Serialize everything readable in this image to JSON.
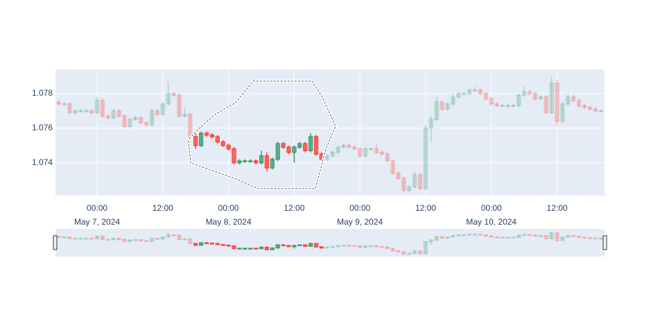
{
  "chart_data": {
    "type": "candlestick",
    "x": [
      "2024-05-06 17:00",
      "2024-05-06 18:00",
      "2024-05-06 19:00",
      "2024-05-06 20:00",
      "2024-05-06 21:00",
      "2024-05-06 22:00",
      "2024-05-06 23:00",
      "2024-05-07 00:00",
      "2024-05-07 01:00",
      "2024-05-07 02:00",
      "2024-05-07 03:00",
      "2024-05-07 04:00",
      "2024-05-07 05:00",
      "2024-05-07 06:00",
      "2024-05-07 07:00",
      "2024-05-07 08:00",
      "2024-05-07 09:00",
      "2024-05-07 10:00",
      "2024-05-07 11:00",
      "2024-05-07 12:00",
      "2024-05-07 13:00",
      "2024-05-07 14:00",
      "2024-05-07 15:00",
      "2024-05-07 16:00",
      "2024-05-07 17:00",
      "2024-05-07 18:00",
      "2024-05-07 19:00",
      "2024-05-07 20:00",
      "2024-05-07 21:00",
      "2024-05-07 22:00",
      "2024-05-07 23:00",
      "2024-05-08 00:00",
      "2024-05-08 01:00",
      "2024-05-08 02:00",
      "2024-05-08 03:00",
      "2024-05-08 04:00",
      "2024-05-08 05:00",
      "2024-05-08 06:00",
      "2024-05-08 07:00",
      "2024-05-08 08:00",
      "2024-05-08 09:00",
      "2024-05-08 10:00",
      "2024-05-08 11:00",
      "2024-05-08 12:00",
      "2024-05-08 13:00",
      "2024-05-08 14:00",
      "2024-05-08 15:00",
      "2024-05-08 16:00",
      "2024-05-08 17:00",
      "2024-05-08 18:00",
      "2024-05-08 19:00",
      "2024-05-08 20:00",
      "2024-05-08 21:00",
      "2024-05-08 22:00",
      "2024-05-08 23:00",
      "2024-05-09 00:00",
      "2024-05-09 01:00",
      "2024-05-09 02:00",
      "2024-05-09 03:00",
      "2024-05-09 04:00",
      "2024-05-09 05:00",
      "2024-05-09 06:00",
      "2024-05-09 07:00",
      "2024-05-09 08:00",
      "2024-05-09 09:00",
      "2024-05-09 10:00",
      "2024-05-09 11:00",
      "2024-05-09 12:00",
      "2024-05-09 13:00",
      "2024-05-09 14:00",
      "2024-05-09 15:00",
      "2024-05-09 16:00",
      "2024-05-09 17:00",
      "2024-05-09 18:00",
      "2024-05-09 19:00",
      "2024-05-09 20:00",
      "2024-05-09 21:00",
      "2024-05-09 22:00",
      "2024-05-09 23:00",
      "2024-05-10 00:00",
      "2024-05-10 01:00",
      "2024-05-10 02:00",
      "2024-05-10 03:00",
      "2024-05-10 04:00",
      "2024-05-10 05:00",
      "2024-05-10 06:00",
      "2024-05-10 07:00",
      "2024-05-10 08:00",
      "2024-05-10 09:00",
      "2024-05-10 10:00",
      "2024-05-10 11:00",
      "2024-05-10 12:00",
      "2024-05-10 13:00",
      "2024-05-10 14:00",
      "2024-05-10 15:00",
      "2024-05-10 16:00",
      "2024-05-10 17:00",
      "2024-05-10 18:00",
      "2024-05-10 19:00",
      "2024-05-10 20:00"
    ],
    "open": [
      1.0775,
      1.0774,
      1.0774,
      1.0769,
      1.077,
      1.077,
      1.077,
      1.0769,
      1.0776,
      1.0767,
      1.0766,
      1.077,
      1.0767,
      1.0761,
      1.0765,
      1.0766,
      1.0763,
      1.0762,
      1.077,
      1.0768,
      1.0774,
      1.078,
      1.0779,
      1.0767,
      1.0768,
      1.0755,
      1.075,
      1.0757,
      1.0756,
      1.0755,
      1.0752,
      1.075,
      1.0748,
      1.074,
      1.0741,
      1.0741,
      1.0741,
      1.074,
      1.0744,
      1.0737,
      1.0742,
      1.0751,
      1.0749,
      1.0746,
      1.0749,
      1.0751,
      1.0747,
      1.0755,
      1.0745,
      1.0742,
      1.0744,
      1.0746,
      1.0749,
      1.075,
      1.0749,
      1.0748,
      1.0744,
      1.0748,
      1.0748,
      1.0746,
      1.0745,
      1.0741,
      1.0734,
      1.0731,
      1.0724,
      1.0726,
      1.0733,
      1.0725,
      1.076,
      1.0765,
      1.0775,
      1.0771,
      1.0774,
      1.0778,
      1.078,
      1.078,
      1.0782,
      1.0782,
      1.078,
      1.0777,
      1.0774,
      1.0773,
      1.0773,
      1.0773,
      1.0773,
      1.0779,
      1.0781,
      1.078,
      1.0777,
      1.0778,
      1.0769,
      1.0786,
      1.0764,
      1.0774,
      1.0778,
      1.0776,
      1.0773,
      1.0772,
      1.0771,
      1.077
    ],
    "high": [
      1.0776,
      1.0775,
      1.0775,
      1.0771,
      1.0771,
      1.0771,
      1.0771,
      1.0778,
      1.0777,
      1.0768,
      1.0771,
      1.0771,
      1.0768,
      1.0766,
      1.0767,
      1.0767,
      1.0764,
      1.0771,
      1.0771,
      1.0775,
      1.0787,
      1.0781,
      1.078,
      1.0772,
      1.0769,
      1.0757,
      1.0758,
      1.0758,
      1.0757,
      1.0756,
      1.0753,
      1.0751,
      1.0749,
      1.0742,
      1.0742,
      1.0742,
      1.0742,
      1.0747,
      1.0746,
      1.0743,
      1.0752,
      1.0752,
      1.075,
      1.075,
      1.0752,
      1.0752,
      1.0757,
      1.0756,
      1.0746,
      1.0745,
      1.0747,
      1.075,
      1.0751,
      1.0751,
      1.075,
      1.0749,
      1.0749,
      1.0749,
      1.0751,
      1.0747,
      1.0746,
      1.0742,
      1.0735,
      1.0732,
      1.0727,
      1.0735,
      1.0734,
      1.0762,
      1.0767,
      1.0778,
      1.0776,
      1.0775,
      1.078,
      1.0781,
      1.0781,
      1.0783,
      1.0784,
      1.0783,
      1.0781,
      1.0778,
      1.0775,
      1.0774,
      1.0774,
      1.0774,
      1.078,
      1.0784,
      1.0782,
      1.0781,
      1.0779,
      1.0779,
      1.079,
      1.0788,
      1.0775,
      1.078,
      1.0779,
      1.0777,
      1.0774,
      1.0773,
      1.0772,
      1.0771
    ],
    "low": [
      1.0773,
      1.0773,
      1.0768,
      1.0768,
      1.0769,
      1.0769,
      1.0768,
      1.0768,
      1.0766,
      1.0765,
      1.0765,
      1.0766,
      1.076,
      1.076,
      1.0764,
      1.0762,
      1.0761,
      1.0761,
      1.0767,
      1.0767,
      1.0773,
      1.0778,
      1.0766,
      1.0766,
      1.0754,
      1.0748,
      1.0749,
      1.0755,
      1.0754,
      1.0751,
      1.0749,
      1.0747,
      1.0739,
      1.0739,
      1.074,
      1.074,
      1.0739,
      1.0739,
      1.0735,
      1.0736,
      1.0741,
      1.0748,
      1.0745,
      1.074,
      1.0748,
      1.0746,
      1.0746,
      1.0744,
      1.0741,
      1.0741,
      1.0743,
      1.0745,
      1.0748,
      1.0748,
      1.0747,
      1.0743,
      1.0743,
      1.0747,
      1.0745,
      1.0744,
      1.074,
      1.0733,
      1.073,
      1.0723,
      1.0723,
      1.0725,
      1.0724,
      1.0724,
      1.0752,
      1.0764,
      1.077,
      1.077,
      1.0773,
      1.0777,
      1.0779,
      1.0779,
      1.0781,
      1.0779,
      1.0776,
      1.0773,
      1.0772,
      1.0772,
      1.0772,
      1.0772,
      1.0772,
      1.0778,
      1.0779,
      1.0776,
      1.0776,
      1.0768,
      1.0768,
      1.0761,
      1.0763,
      1.0773,
      1.0775,
      1.0772,
      1.0771,
      1.077,
      1.0769,
      1.0769
    ],
    "close": [
      1.0774,
      1.0774,
      1.0769,
      1.077,
      1.077,
      1.077,
      1.0769,
      1.0776,
      1.0767,
      1.0766,
      1.077,
      1.0767,
      1.0761,
      1.0765,
      1.0766,
      1.0763,
      1.0762,
      1.077,
      1.0768,
      1.0774,
      1.078,
      1.0779,
      1.0767,
      1.0768,
      1.0755,
      1.075,
      1.0757,
      1.0756,
      1.0755,
      1.0752,
      1.075,
      1.0748,
      1.074,
      1.0741,
      1.0741,
      1.0741,
      1.074,
      1.0744,
      1.0737,
      1.0742,
      1.0751,
      1.0749,
      1.0746,
      1.0749,
      1.0751,
      1.0747,
      1.0755,
      1.0745,
      1.0742,
      1.0744,
      1.0746,
      1.0749,
      1.075,
      1.0749,
      1.0748,
      1.0744,
      1.0748,
      1.0748,
      1.0746,
      1.0745,
      1.0741,
      1.0734,
      1.0731,
      1.0724,
      1.0726,
      1.0733,
      1.0725,
      1.076,
      1.0765,
      1.0775,
      1.0771,
      1.0774,
      1.0778,
      1.078,
      1.078,
      1.0782,
      1.0782,
      1.078,
      1.0777,
      1.0774,
      1.0773,
      1.0773,
      1.0773,
      1.0773,
      1.0779,
      1.0781,
      1.078,
      1.0777,
      1.0778,
      1.0769,
      1.0786,
      1.0764,
      1.0774,
      1.0778,
      1.0776,
      1.0773,
      1.0772,
      1.0771,
      1.077,
      1.077
    ],
    "increasing_color": "#3D9970",
    "decreasing_color": "#FF4136",
    "xlim": [
      "2024-05-06 16:24",
      "2024-05-10 20:40"
    ],
    "xticks": [
      {
        "value": "2024-05-07 00:00",
        "label": "00:00\nMay 7, 2024"
      },
      {
        "value": "2024-05-07 12:00",
        "label": "12:00"
      },
      {
        "value": "2024-05-08 00:00",
        "label": "00:00\nMay 8, 2024"
      },
      {
        "value": "2024-05-08 12:00",
        "label": "12:00"
      },
      {
        "value": "2024-05-09 00:00",
        "label": "00:00\nMay 9, 2024"
      },
      {
        "value": "2024-05-09 12:00",
        "label": "12:00"
      },
      {
        "value": "2024-05-10 00:00",
        "label": "00:00\nMay 10, 2024"
      },
      {
        "value": "2024-05-10 12:00",
        "label": "12:00"
      }
    ],
    "ylim": [
      1.0721,
      1.0794
    ],
    "yticks": [
      1.074,
      1.076,
      1.078
    ],
    "grid": true,
    "rangeslider": true
  }
}
